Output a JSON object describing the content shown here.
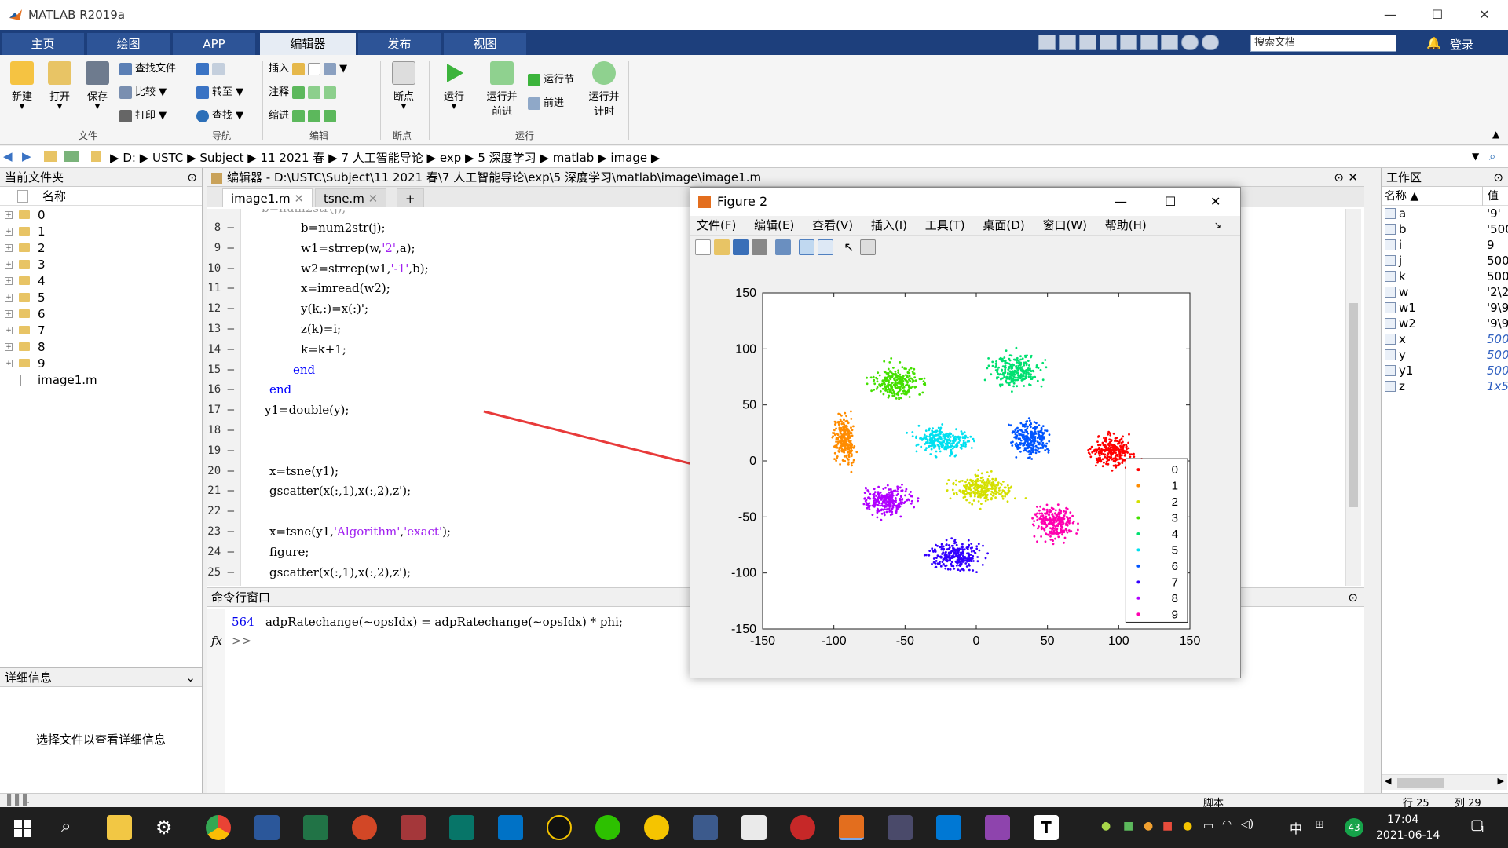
{
  "app": {
    "title": "MATLAB R2019a"
  },
  "window_controls": {
    "min": "—",
    "max": "☐",
    "close": "✕"
  },
  "tabs": [
    "主页",
    "绘图",
    "APP",
    "编辑器",
    "发布",
    "视图"
  ],
  "search": {
    "placeholder": "搜索文档"
  },
  "login": "登录",
  "ribbon": {
    "file_group": {
      "label": "文件",
      "new": "新建",
      "open": "打开",
      "save": "保存",
      "find_files": "查找文件",
      "compare": "比较",
      "print": "打印"
    },
    "nav_group": {
      "label": "导航",
      "goto": "转至",
      "find": "查找"
    },
    "edit_group": {
      "label": "编辑",
      "insert": "插入",
      "comment": "注释",
      "indent": "缩进"
    },
    "breakpoint_group": {
      "label": "断点",
      "breakpoints": "断点"
    },
    "run_group": {
      "label": "运行",
      "run": "运行",
      "run_advance": "运行并\n前进",
      "run_section": "运行节",
      "advance": "前进",
      "run_time": "运行并\n计时"
    }
  },
  "address": [
    "D:",
    "USTC",
    "Subject",
    "11 2021 春",
    "7 人工智能导论",
    "exp",
    "5 深度学习",
    "matlab",
    "image"
  ],
  "current_folder": {
    "title": "当前文件夹",
    "column": "名称",
    "items": [
      "0",
      "1",
      "2",
      "3",
      "4",
      "5",
      "6",
      "7",
      "8",
      "9"
    ],
    "file": "image1.m"
  },
  "details": {
    "title": "详细信息",
    "message": "选择文件以查看详细信息"
  },
  "editor": {
    "title": "编辑器 - D:\\USTC\\Subject\\11 2021 春\\7 人工智能导论\\exp\\5 深度学习\\matlab\\image\\image1.m",
    "tabs": [
      "image1.m",
      "tsne.m"
    ],
    "line_numbers": [
      "8",
      "9",
      "10",
      "11",
      "12",
      "13",
      "14",
      "15",
      "16",
      "17",
      "18",
      "19",
      "20",
      "21",
      "22",
      "23",
      "24",
      "25"
    ],
    "lines": [
      "b=num2str(j);",
      "w1=strrep(w,'2',a);",
      "w2=strrep(w1,'-1',b);",
      "x=imread(w2);",
      "y(k,:)=x(:)';",
      "z(k)=i;",
      "k=k+1;",
      "end",
      "end",
      "y1=double(y);",
      "",
      "",
      "x=tsne(y1);",
      "gscatter(x(:,1),x(:,2),z');",
      "",
      "x=tsne(y1,'Algorithm','exact');",
      "figure;",
      "gscatter(x(:,1),x(:,2),z');"
    ]
  },
  "command": {
    "title": "命令行窗口",
    "link": "564",
    "line": "adpRatechange(~opsIdx) = adpRatechange(~opsIdx) * phi;",
    "fx": "fx",
    "prompt": ">>"
  },
  "workspace": {
    "title": "工作区",
    "col_name": "名称",
    "col_value": "值",
    "vars": [
      {
        "name": "a",
        "value": "'9'"
      },
      {
        "name": "b",
        "value": "'500'"
      },
      {
        "name": "i",
        "value": "9"
      },
      {
        "name": "j",
        "value": "500"
      },
      {
        "name": "k",
        "value": "500"
      },
      {
        "name": "w",
        "value": "'2\\2'"
      },
      {
        "name": "w1",
        "value": "'9\\9'"
      },
      {
        "name": "w2",
        "value": "'9\\9'"
      },
      {
        "name": "x",
        "value": "500"
      },
      {
        "name": "y",
        "value": "500"
      },
      {
        "name": "y1",
        "value": "500"
      },
      {
        "name": "z",
        "value": "1x5"
      }
    ]
  },
  "statusbar": {
    "script": "脚本",
    "row": "行 25",
    "col": "列 29"
  },
  "taskbar": {
    "time": "17:04",
    "date": "2021-06-14",
    "ime": "中",
    "badge": "43",
    "notif": "1"
  },
  "figure": {
    "title": "Figure 2",
    "menu": [
      "文件(F)",
      "编辑(E)",
      "查看(V)",
      "插入(I)",
      "工具(T)",
      "桌面(D)",
      "窗口(W)",
      "帮助(H)"
    ]
  },
  "chart_data": {
    "type": "scatter",
    "xlim": [
      -150,
      150
    ],
    "ylim": [
      -150,
      150
    ],
    "xticks": [
      "-150",
      "-100",
      "-50",
      "0",
      "50",
      "100",
      "150"
    ],
    "yticks": [
      "150",
      "100",
      "50",
      "0",
      "-50",
      "-100",
      "-150"
    ],
    "grid": false,
    "legend_position": "bottom-right",
    "series": [
      {
        "name": "0",
        "color": "#ff0000",
        "center": [
          95,
          8
        ]
      },
      {
        "name": "1",
        "color": "#ff8c00",
        "center": [
          -93,
          20
        ]
      },
      {
        "name": "2",
        "color": "#d4e000",
        "center": [
          5,
          -25
        ]
      },
      {
        "name": "3",
        "color": "#44e000",
        "center": [
          -55,
          70
        ]
      },
      {
        "name": "4",
        "color": "#00e070",
        "center": [
          28,
          80
        ]
      },
      {
        "name": "5",
        "color": "#00e0f0",
        "center": [
          -22,
          18
        ]
      },
      {
        "name": "6",
        "color": "#0055ff",
        "center": [
          38,
          20
        ]
      },
      {
        "name": "7",
        "color": "#3300ff",
        "center": [
          -14,
          -85
        ]
      },
      {
        "name": "8",
        "color": "#b000ff",
        "center": [
          -62,
          -35
        ]
      },
      {
        "name": "9",
        "color": "#ff00b0",
        "center": [
          55,
          -55
        ]
      }
    ]
  },
  "colors": {
    "tabbar": "#1d3f7c",
    "accent_arrow": "#e83a3a"
  }
}
